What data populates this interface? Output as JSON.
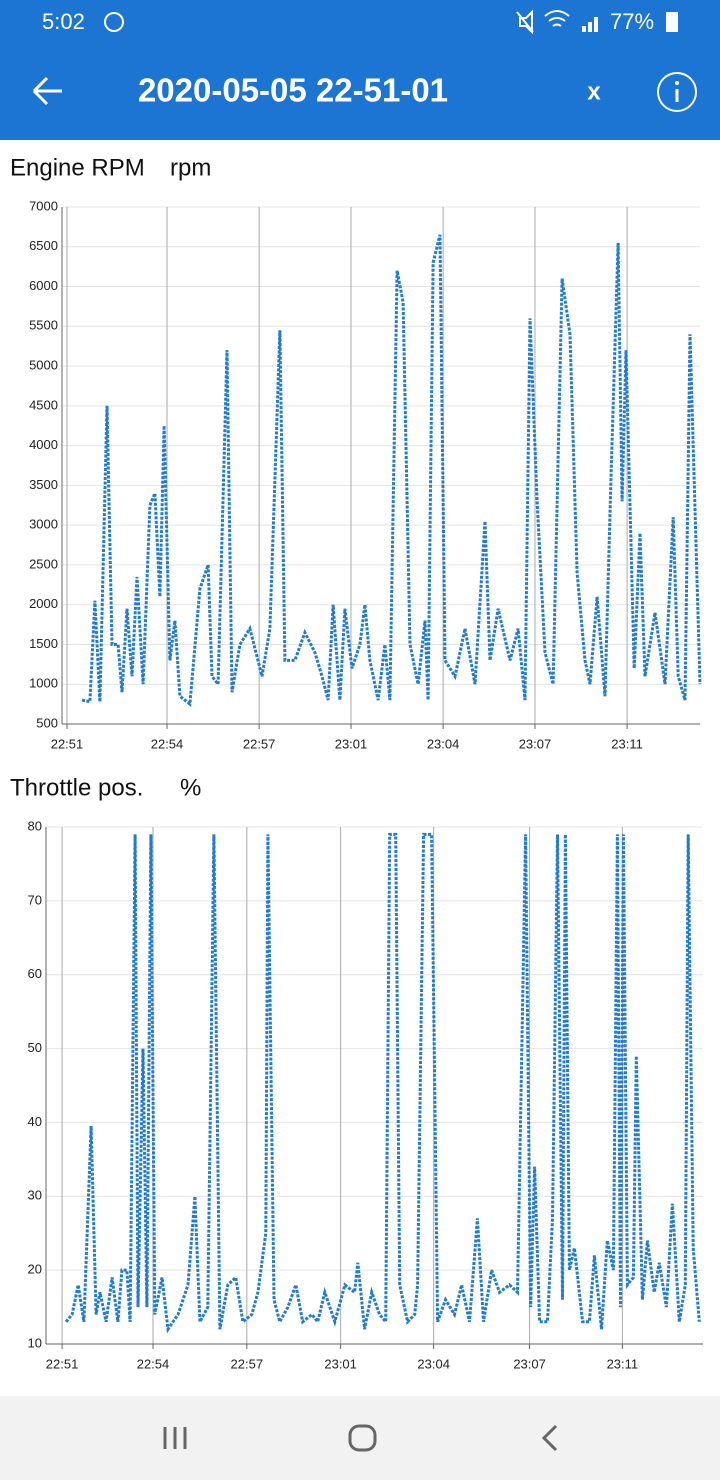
{
  "status_bar": {
    "time": "5:02",
    "battery": "77%"
  },
  "app_bar": {
    "title": "2020-05-05 22-51-01",
    "close": "x"
  },
  "chart_data": [
    {
      "type": "line",
      "title": "Engine RPM",
      "unit": "rpm",
      "color": "#1f7bd3",
      "grid": true,
      "x": [
        0.76,
        1.06,
        1.25,
        1.44,
        1.71,
        1.9,
        2.13,
        2.28,
        2.47,
        2.66,
        2.85,
        3.08,
        3.34,
        3.53,
        3.72,
        3.88,
        4.1,
        4.29,
        4.48,
        4.86,
        5.24,
        5.55,
        5.7,
        5.93,
        6.27,
        6.46,
        6.76,
        7.14,
        7.6,
        7.9,
        8.28,
        8.47,
        8.85,
        9.23,
        9.61,
        9.88,
        10.11,
        10.3,
        10.56,
        10.75,
        11.02,
        11.32,
        11.51,
        11.7,
        12.01,
        12.27,
        12.46,
        12.73,
        12.96,
        13.22,
        13.53,
        13.79,
        13.91,
        14.1,
        14.36,
        14.55,
        14.93,
        15.31,
        15.69,
        16.07,
        16.26,
        16.57,
        17.02,
        17.33,
        17.59,
        17.78,
        18.05,
        18.35,
        18.66,
        19.0,
        19.3,
        19.57,
        19.87,
        20.06,
        20.33,
        20.63,
        20.86,
        21.13,
        21.28,
        21.43,
        21.74,
        21.96,
        22.15,
        22.53,
        22.91,
        23.22,
        23.41,
        23.67,
        23.86,
        24.24
      ],
      "values": [
        800,
        780,
        2050,
        780,
        4500,
        1500,
        1500,
        900,
        1950,
        1100,
        2350,
        1000,
        3250,
        3400,
        2100,
        4250,
        1300,
        1800,
        850,
        750,
        2200,
        2500,
        1100,
        1000,
        5200,
        900,
        1500,
        1700,
        1100,
        1700,
        5450,
        1300,
        1300,
        1650,
        1400,
        1100,
        800,
        2000,
        800,
        1950,
        1200,
        1500,
        2000,
        1300,
        800,
        1500,
        800,
        6200,
        5800,
        1500,
        1000,
        1800,
        800,
        6300,
        6650,
        1300,
        1100,
        1700,
        1000,
        3050,
        1300,
        1950,
        1300,
        1700,
        800,
        5600,
        3300,
        1400,
        1000,
        6100,
        5400,
        2400,
        1300,
        1000,
        2100,
        850,
        3600,
        6550,
        3300,
        5200,
        1200,
        2900,
        1100,
        1900,
        1000,
        3100,
        1100,
        800,
        5400,
        1000
      ],
      "xlim": [
        0,
        24.24
      ],
      "xticks": [
        {
          "value": 0.19,
          "label": "22:51"
        },
        {
          "value": 3.99,
          "label": "22:54"
        },
        {
          "value": 7.49,
          "label": "22:57"
        },
        {
          "value": 10.98,
          "label": "23:01"
        },
        {
          "value": 14.48,
          "label": "23:04"
        },
        {
          "value": 17.97,
          "label": "23:07"
        },
        {
          "value": 21.47,
          "label": "23:11"
        }
      ],
      "ylim": [
        500,
        7000
      ],
      "yticks": [
        500,
        1000,
        1500,
        2000,
        2500,
        3000,
        3500,
        4000,
        4500,
        5000,
        5500,
        6000,
        6500,
        7000
      ]
    },
    {
      "type": "line",
      "title": "Throttle pos.",
      "unit": "%",
      "color": "#1f7bd3",
      "grid": true,
      "x": [
        0.34,
        0.57,
        0.8,
        1.02,
        1.29,
        1.48,
        1.63,
        1.86,
        2.09,
        2.31,
        2.46,
        2.65,
        2.77,
        2.96,
        3.07,
        3.26,
        3.41,
        3.56,
        3.71,
        3.98,
        4.21,
        4.59,
        4.97,
        5.23,
        5.42,
        5.72,
        5.95,
        6.18,
        6.48,
        6.78,
        7.05,
        7.39,
        7.62,
        7.92,
        8.0,
        8.23,
        8.45,
        8.76,
        9.06,
        9.32,
        9.67,
        9.89,
        10.16,
        10.54,
        10.92,
        11.29,
        11.41,
        11.67,
        11.94,
        12.24,
        12.47,
        12.62,
        12.85,
        13.0,
        13.3,
        13.57,
        13.68,
        13.91,
        14.21,
        14.44,
        14.74,
        15.08,
        15.35,
        15.65,
        15.95,
        16.18,
        16.49,
        16.79,
        17.17,
        17.47,
        17.78,
        17.97,
        18.12,
        18.31,
        18.61,
        18.8,
        18.99,
        19.18,
        19.29,
        19.44,
        19.63,
        19.94,
        20.2,
        20.39,
        20.66,
        20.88,
        21.11,
        21.26,
        21.38,
        21.49,
        21.64,
        21.87,
        21.98,
        22.21,
        22.4,
        22.66,
        22.85,
        23.12,
        23.35,
        23.61,
        23.84,
        23.95,
        24.14,
        24.37
      ],
      "values": [
        13,
        14,
        18,
        13,
        39.5,
        14,
        17,
        13,
        19,
        13,
        20,
        20,
        13,
        79,
        15,
        50,
        15,
        79,
        14,
        19,
        12,
        14,
        18,
        30,
        13,
        15,
        79,
        12,
        18,
        19,
        13,
        14,
        17,
        25,
        79,
        16,
        13,
        15,
        18,
        13,
        14,
        13,
        17,
        13,
        18,
        17,
        21,
        12,
        17,
        14,
        13,
        79,
        79,
        18,
        13,
        14,
        18,
        79,
        79,
        13,
        16,
        14,
        18,
        13,
        27,
        13,
        20,
        17,
        18,
        17,
        79,
        15,
        34,
        13,
        13,
        27,
        79,
        16,
        79,
        20,
        23,
        13,
        13,
        22,
        12,
        24,
        20,
        79,
        15,
        79,
        18,
        19,
        49,
        16,
        24,
        17,
        21,
        15,
        29,
        13,
        18,
        79,
        23,
        13
      ],
      "xlim": [
        -0.42,
        24.51
      ],
      "xticks": [
        {
          "value": 0.19,
          "label": "22:51"
        },
        {
          "value": 3.64,
          "label": "22:54"
        },
        {
          "value": 7.2,
          "label": "22:57"
        },
        {
          "value": 10.76,
          "label": "23:01"
        },
        {
          "value": 14.29,
          "label": "23:04"
        },
        {
          "value": 17.93,
          "label": "23:07"
        },
        {
          "value": 21.45,
          "label": "23:11"
        }
      ],
      "ylim": [
        10,
        80
      ],
      "yticks": [
        10,
        20,
        30,
        40,
        50,
        60,
        70,
        80
      ]
    }
  ]
}
